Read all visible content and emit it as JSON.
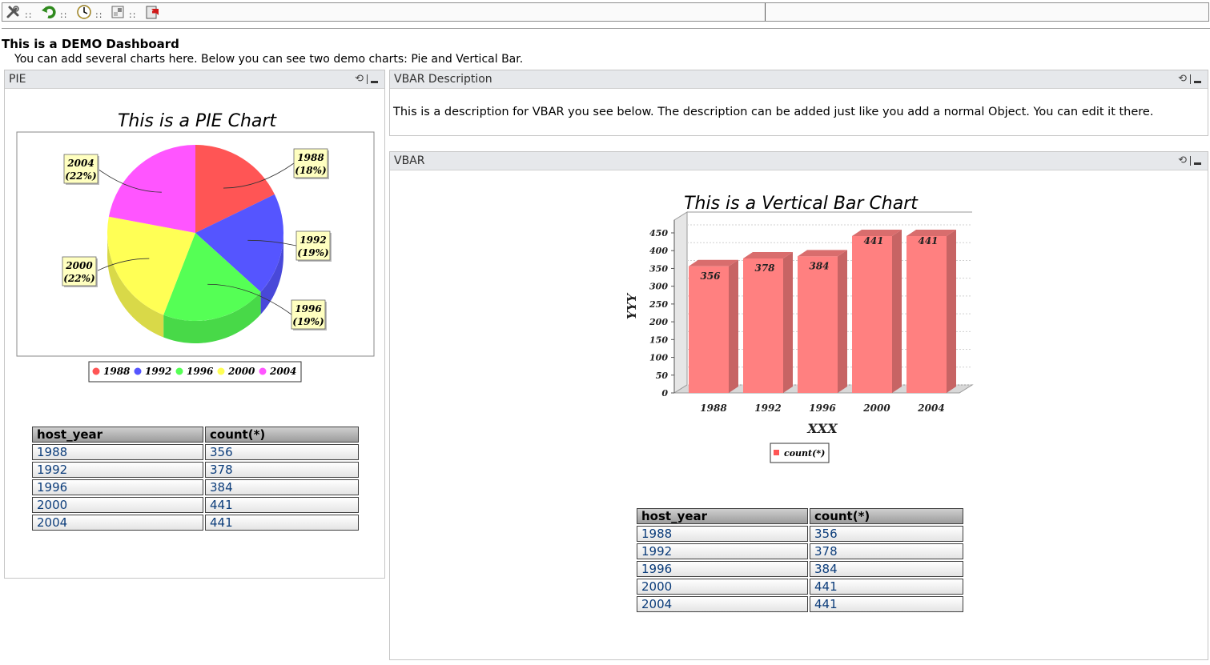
{
  "toolbar": {
    "items": [
      "tools-icon",
      "undo-icon",
      "clock-icon",
      "window-icon",
      "exit-icon"
    ],
    "separator": "::"
  },
  "dashboard": {
    "title": "This is a DEMO Dashboard",
    "description": "You can add several charts here. Below you can see two demo charts: Pie and Vertical Bar."
  },
  "pie_portlet": {
    "title": "PIE",
    "chart_title": "This is a PIE Chart",
    "labels": [
      {
        "year": "1988",
        "pct": "(18%)"
      },
      {
        "year": "1992",
        "pct": "(19%)"
      },
      {
        "year": "1996",
        "pct": "(19%)"
      },
      {
        "year": "2000",
        "pct": "(22%)"
      },
      {
        "year": "2004",
        "pct": "(22%)"
      }
    ],
    "legend": [
      "1988",
      "1992",
      "1996",
      "2000",
      "2004"
    ],
    "table": {
      "headers": [
        "host_year",
        "count(*)"
      ],
      "rows": [
        [
          "1988",
          "356"
        ],
        [
          "1992",
          "378"
        ],
        [
          "1996",
          "384"
        ],
        [
          "2000",
          "441"
        ],
        [
          "2004",
          "441"
        ]
      ]
    }
  },
  "vbar_desc_portlet": {
    "title": "VBAR Description",
    "text": "This is a description for VBAR you see below. The description can be added just like you add a normal Object. You can edit it there."
  },
  "vbar_portlet": {
    "title": "VBAR",
    "chart_title": "This is a Vertical Bar Chart",
    "xlabel": "XXX",
    "ylabel": "YYY",
    "legend": "count(*)",
    "table": {
      "headers": [
        "host_year",
        "count(*)"
      ],
      "rows": [
        [
          "1988",
          "356"
        ],
        [
          "1992",
          "378"
        ],
        [
          "1996",
          "384"
        ],
        [
          "2000",
          "441"
        ],
        [
          "2004",
          "441"
        ]
      ]
    }
  },
  "colors": {
    "pie": [
      "#ff5555",
      "#5555ff",
      "#55ff55",
      "#ffff55",
      "#ff55ff"
    ],
    "bar": "#ff8080",
    "accent_header": "#e6e8eb"
  },
  "chart_data": [
    {
      "type": "pie",
      "title": "This is a PIE Chart",
      "categories": [
        "1988",
        "1992",
        "1996",
        "2000",
        "2004"
      ],
      "values": [
        356,
        378,
        384,
        441,
        441
      ],
      "percent_labels": [
        "18%",
        "19%",
        "19%",
        "22%",
        "22%"
      ],
      "legend": "bottom"
    },
    {
      "type": "bar",
      "title": "This is a Vertical Bar Chart",
      "categories": [
        "1988",
        "1992",
        "1996",
        "2000",
        "2004"
      ],
      "series": [
        {
          "name": "count(*)",
          "values": [
            356,
            378,
            384,
            441,
            441
          ]
        }
      ],
      "xlabel": "XXX",
      "ylabel": "YYY",
      "ylim": [
        0,
        450
      ],
      "yticks": [
        0,
        50,
        100,
        150,
        200,
        250,
        300,
        350,
        400,
        450
      ],
      "grid": true,
      "legend": "bottom"
    }
  ]
}
